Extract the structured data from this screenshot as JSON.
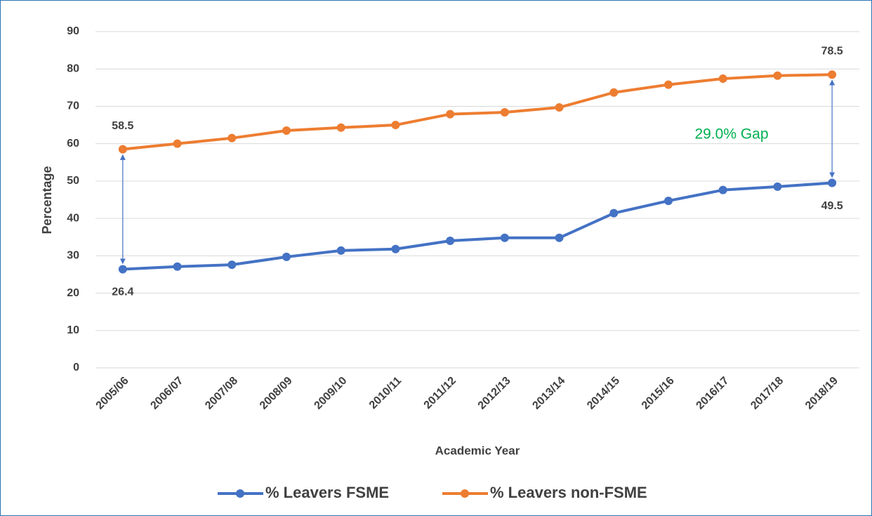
{
  "chart_data": {
    "type": "line",
    "xlabel": "Academic Year",
    "ylabel": "Percentage",
    "categories": [
      "2005/06",
      "2006/07",
      "2007/08",
      "2008/09",
      "2009/10",
      "2010/11",
      "2011/12",
      "2012/13",
      "2013/14",
      "2014/15",
      "2015/16",
      "2016/17",
      "2017/18",
      "2018/19"
    ],
    "series": [
      {
        "name": "% Leavers FSME",
        "color": "#4472c4",
        "values": [
          26.4,
          27.1,
          27.6,
          29.7,
          31.4,
          31.8,
          34.0,
          34.8,
          34.8,
          41.4,
          44.7,
          47.6,
          48.5,
          49.5
        ],
        "value_labels": [
          "26.4",
          null,
          null,
          null,
          null,
          null,
          null,
          null,
          null,
          null,
          null,
          null,
          null,
          "49.5"
        ]
      },
      {
        "name": "% Leavers non-FSME",
        "color": "#ed7d31",
        "values": [
          58.5,
          60.0,
          61.5,
          63.5,
          64.3,
          65.0,
          67.9,
          68.4,
          69.7,
          73.7,
          75.8,
          77.4,
          78.2,
          78.5
        ],
        "value_labels": [
          "58.5",
          null,
          null,
          null,
          null,
          null,
          null,
          null,
          null,
          null,
          null,
          null,
          null,
          "78.5"
        ]
      }
    ],
    "annotations": [
      "29.0% Gap"
    ],
    "ylim": [
      0,
      90
    ],
    "yticks": [
      0,
      10,
      20,
      30,
      40,
      50,
      60,
      70,
      80,
      90
    ],
    "grid": true,
    "legend": "bottom"
  }
}
